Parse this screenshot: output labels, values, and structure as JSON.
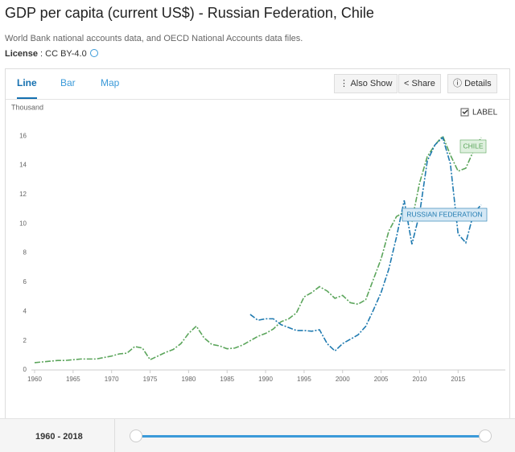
{
  "header": {
    "title": "GDP per capita (current US$) - Russian Federation, Chile",
    "source": "World Bank national accounts data, and OECD National Accounts data files.",
    "license_label": "License",
    "license_value": ": CC BY-4.0"
  },
  "tabs": [
    "Line",
    "Bar",
    "Map"
  ],
  "buttons": [
    "Also Show",
    "Share",
    "Details"
  ],
  "label_toggle": "LABEL",
  "range_label": "1960 - 2018",
  "chart_data": {
    "type": "line",
    "y_unit": "Thousand",
    "x": [
      1960,
      1961,
      1962,
      1963,
      1964,
      1965,
      1966,
      1967,
      1968,
      1969,
      1970,
      1971,
      1972,
      1973,
      1974,
      1975,
      1976,
      1977,
      1978,
      1979,
      1980,
      1981,
      1982,
      1983,
      1984,
      1985,
      1986,
      1987,
      1988,
      1989,
      1990,
      1991,
      1992,
      1993,
      1994,
      1995,
      1996,
      1997,
      1998,
      1999,
      2000,
      2001,
      2002,
      2003,
      2004,
      2005,
      2006,
      2007,
      2008,
      2009,
      2010,
      2011,
      2012,
      2013,
      2014,
      2015,
      2016,
      2017,
      2018
    ],
    "series": [
      {
        "name": "CHILE",
        "color": "#5ba55b",
        "label_fill": "#dff0df",
        "values": [
          0.5,
          0.55,
          0.6,
          0.65,
          0.65,
          0.7,
          0.75,
          0.75,
          0.75,
          0.85,
          0.95,
          1.1,
          1.15,
          1.6,
          1.5,
          0.7,
          0.95,
          1.2,
          1.4,
          1.8,
          2.5,
          3.0,
          2.2,
          1.75,
          1.65,
          1.45,
          1.5,
          1.7,
          2.0,
          2.3,
          2.5,
          2.8,
          3.3,
          3.5,
          3.9,
          5.0,
          5.3,
          5.7,
          5.4,
          4.9,
          5.1,
          4.6,
          4.5,
          4.8,
          6.2,
          7.6,
          9.5,
          10.5,
          10.8,
          10.2,
          12.8,
          14.6,
          15.4,
          16.0,
          14.7,
          13.6,
          13.8,
          15.0,
          15.9
        ]
      },
      {
        "name": "RUSSIAN FEDERATION",
        "color": "#1f7ab0",
        "label_fill": "#d5e8f5",
        "values": [
          null,
          null,
          null,
          null,
          null,
          null,
          null,
          null,
          null,
          null,
          null,
          null,
          null,
          null,
          null,
          null,
          null,
          null,
          null,
          null,
          null,
          null,
          null,
          null,
          null,
          null,
          null,
          null,
          3.8,
          3.4,
          3.5,
          3.5,
          3.1,
          2.9,
          2.7,
          2.7,
          2.65,
          2.75,
          1.8,
          1.3,
          1.8,
          2.1,
          2.4,
          2.98,
          4.1,
          5.3,
          6.9,
          9.1,
          11.6,
          8.6,
          10.7,
          14.3,
          15.4,
          15.9,
          14.1,
          9.3,
          8.7,
          10.7,
          11.3
        ]
      }
    ],
    "xlim": [
      1960,
      2018
    ],
    "xticks": [
      1960,
      1965,
      1970,
      1975,
      1980,
      1985,
      1990,
      1995,
      2000,
      2005,
      2010,
      2015
    ],
    "ylim": [
      0,
      17
    ],
    "yticks": [
      0,
      2,
      4,
      6,
      8,
      10,
      12,
      14,
      16
    ],
    "grid": false
  }
}
